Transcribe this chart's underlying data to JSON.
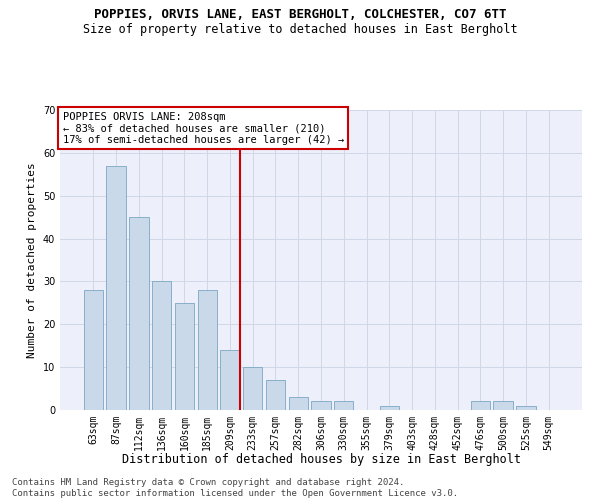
{
  "title": "POPPIES, ORVIS LANE, EAST BERGHOLT, COLCHESTER, CO7 6TT",
  "subtitle": "Size of property relative to detached houses in East Bergholt",
  "xlabel": "Distribution of detached houses by size in East Bergholt",
  "ylabel": "Number of detached properties",
  "categories": [
    "63sqm",
    "87sqm",
    "112sqm",
    "136sqm",
    "160sqm",
    "185sqm",
    "209sqm",
    "233sqm",
    "257sqm",
    "282sqm",
    "306sqm",
    "330sqm",
    "355sqm",
    "379sqm",
    "403sqm",
    "428sqm",
    "452sqm",
    "476sqm",
    "500sqm",
    "525sqm",
    "549sqm"
  ],
  "values": [
    28,
    57,
    45,
    30,
    25,
    28,
    14,
    10,
    7,
    3,
    2,
    2,
    0,
    1,
    0,
    0,
    0,
    2,
    2,
    1,
    0
  ],
  "bar_color": "#c9d9ea",
  "bar_edge_color": "#7ba7c4",
  "annotation_lines": [
    "POPPIES ORVIS LANE: 208sqm",
    "← 83% of detached houses are smaller (210)",
    "17% of semi-detached houses are larger (42) →"
  ],
  "annotation_box_color": "#ffffff",
  "annotation_box_edge": "#cc0000",
  "vline_color": "#cc0000",
  "vline_x_index": 6.45,
  "ylim": [
    0,
    70
  ],
  "yticks": [
    0,
    10,
    20,
    30,
    40,
    50,
    60,
    70
  ],
  "grid_color": "#d0d8e8",
  "background_color": "#edf0fb",
  "footer": "Contains HM Land Registry data © Crown copyright and database right 2024.\nContains public sector information licensed under the Open Government Licence v3.0.",
  "title_fontsize": 9,
  "subtitle_fontsize": 8.5,
  "xlabel_fontsize": 8.5,
  "ylabel_fontsize": 8,
  "tick_fontsize": 7,
  "annotation_fontsize": 7.5,
  "footer_fontsize": 6.5
}
